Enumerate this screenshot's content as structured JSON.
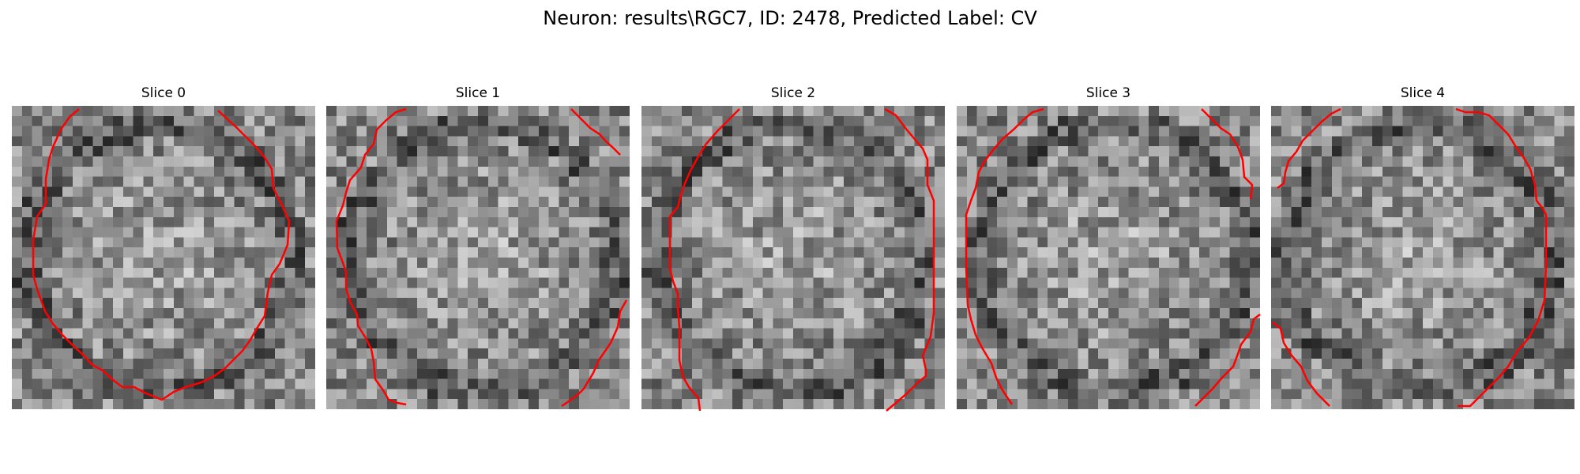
{
  "figure": {
    "title": "Neuron: results\\RGC7, ID: 2478, Predicted Label: CV"
  },
  "panels": [
    {
      "title": "Slice 0"
    },
    {
      "title": "Slice 1"
    },
    {
      "title": "Slice 2"
    },
    {
      "title": "Slice 3"
    },
    {
      "title": "Slice 4"
    }
  ],
  "colors": {
    "contour": "#ff0000",
    "colormap": "gray"
  }
}
